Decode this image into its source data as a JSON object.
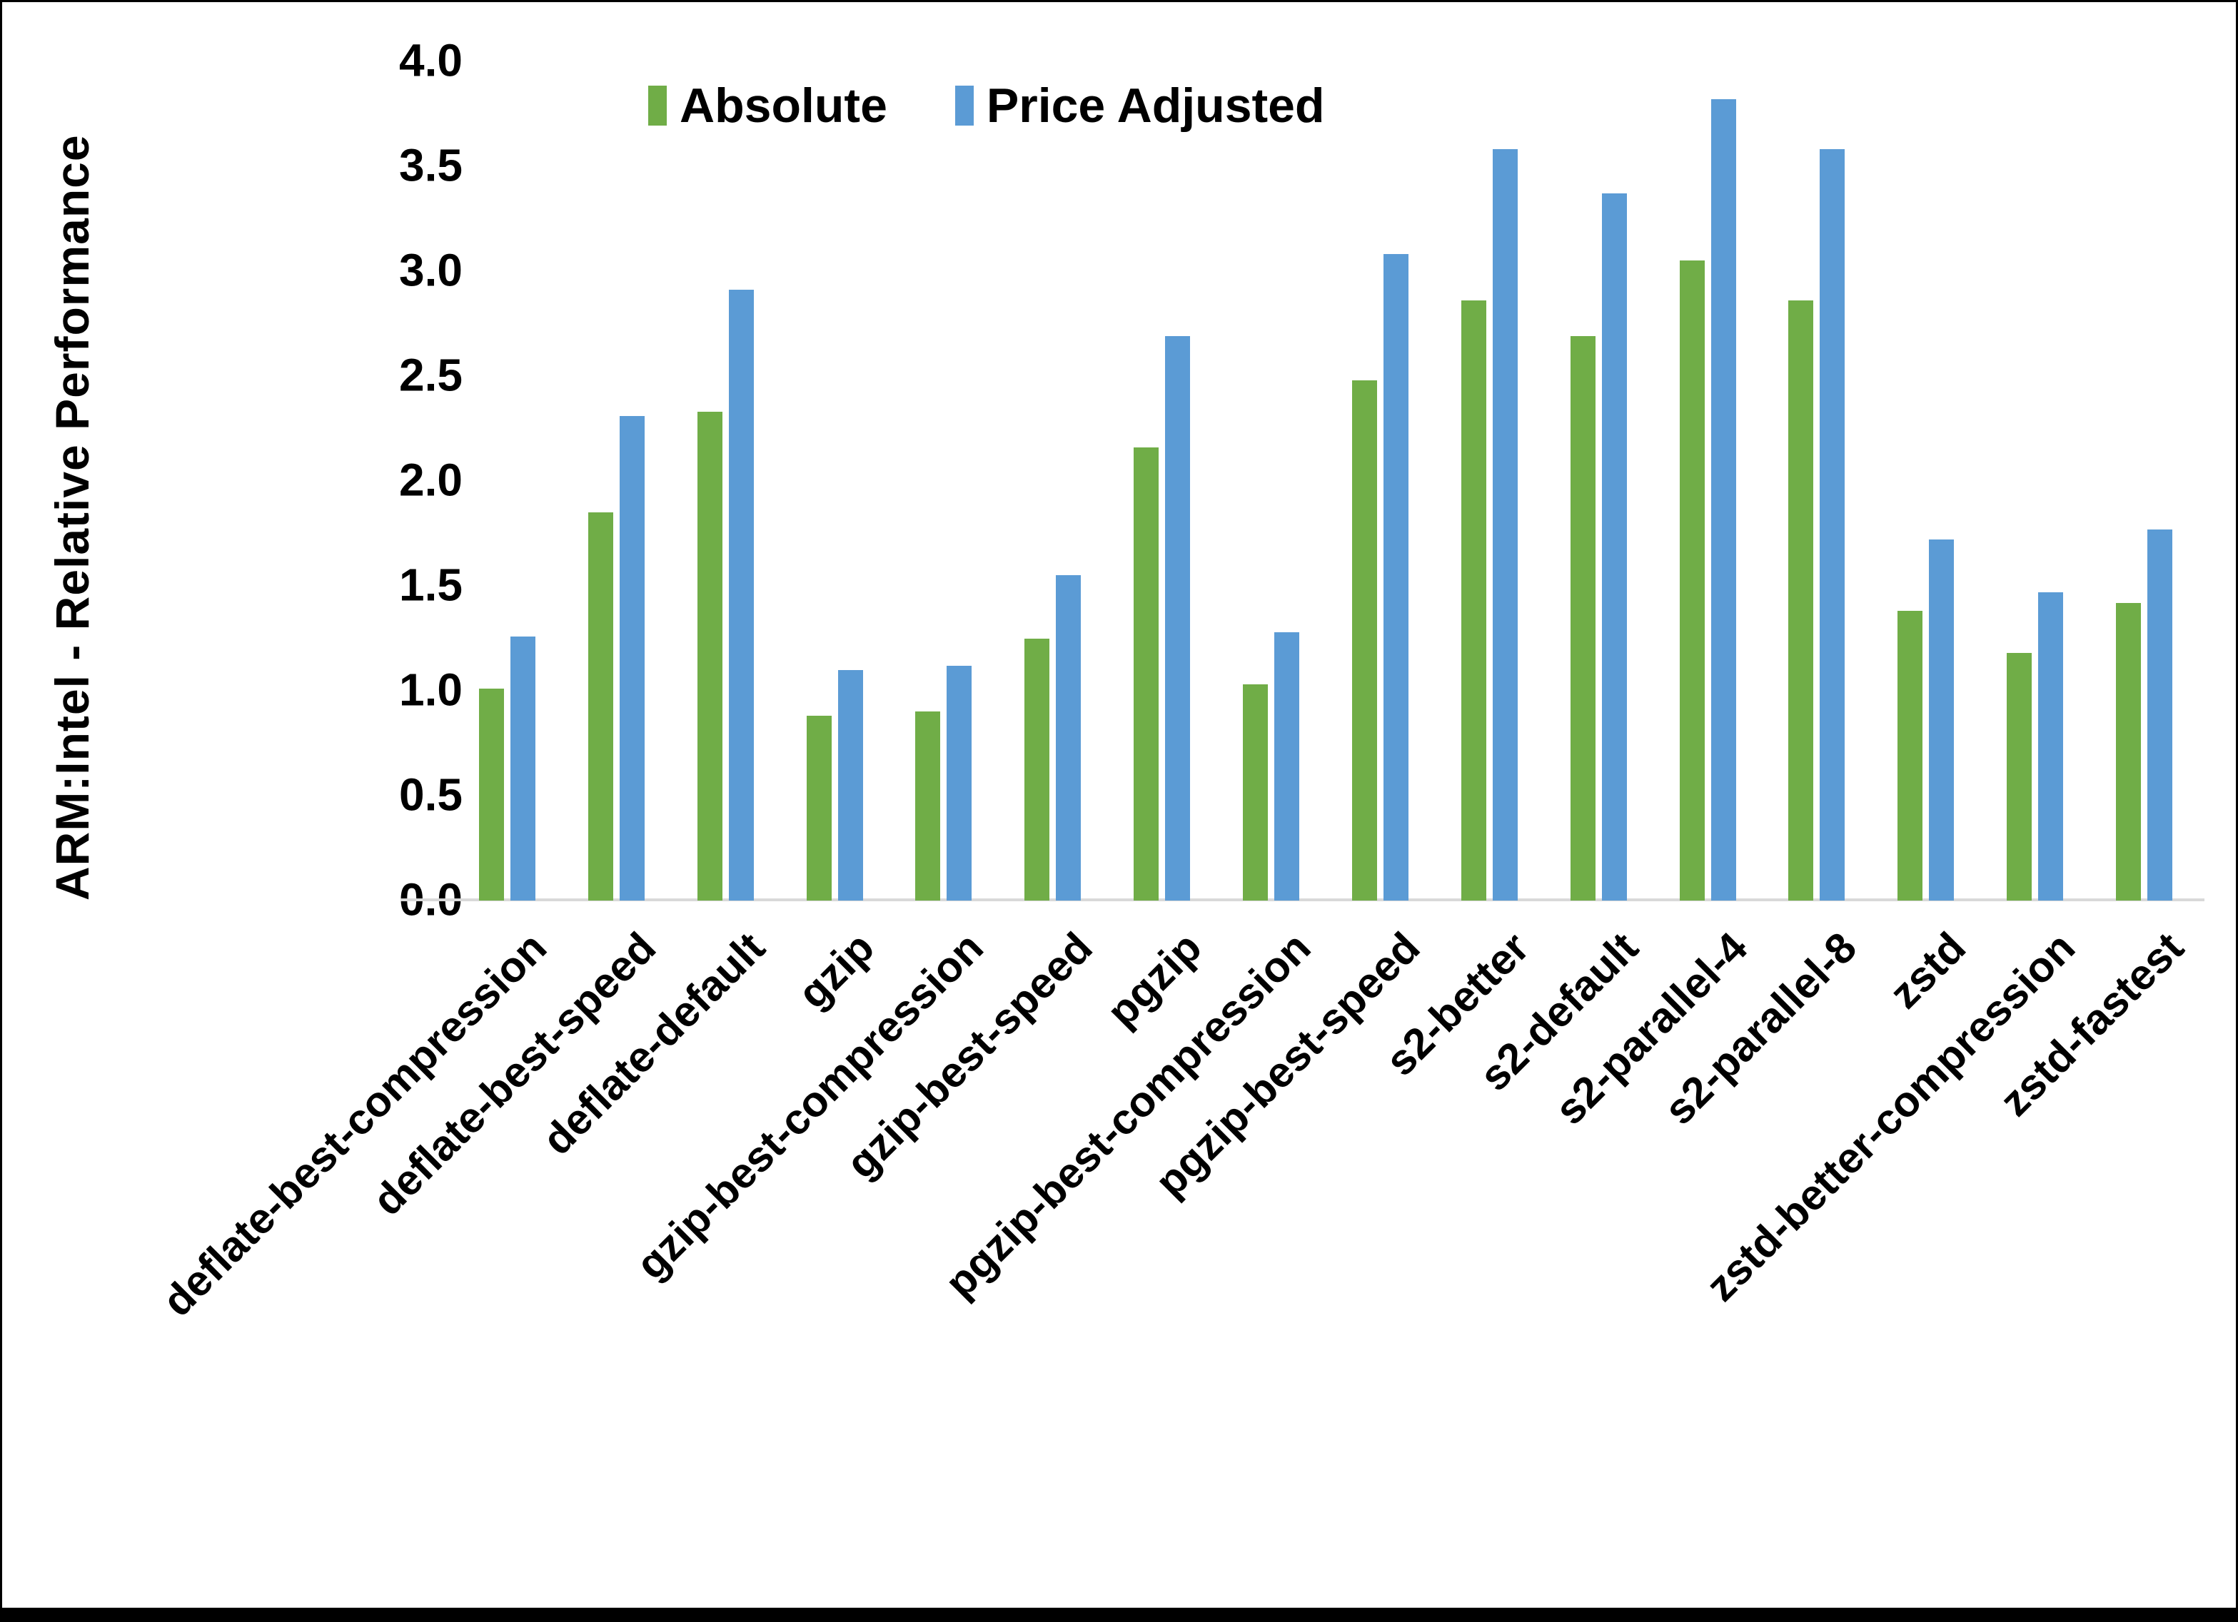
{
  "y_axis": {
    "title": "ARM:Intel - Relative Performance",
    "ticks": [
      "4.0",
      "3.5",
      "3.0",
      "2.5",
      "2.0",
      "1.5",
      "1.0",
      "0.5",
      "0.0"
    ],
    "min": 0.0,
    "max": 4.0
  },
  "chart_data": {
    "type": "bar",
    "title": "",
    "xlabel": "",
    "ylabel": "ARM:Intel - Relative Performance",
    "ylim": [
      0.0,
      4.0
    ],
    "ytick_interval": 0.5,
    "grid": false,
    "legend_position": "top-center",
    "categories": [
      "deflate-best-compression",
      "deflate-best-speed",
      "deflate-default",
      "gzip",
      "gzip-best-compression",
      "gzip-best-speed",
      "pgzip",
      "pgzip-best-compression",
      "pgzip-best-speed",
      "s2-better",
      "s2-default",
      "s2-parallel-4",
      "s2-parallel-8",
      "zstd",
      "zstd-better-compression",
      "zstd-fastest"
    ],
    "series": [
      {
        "name": "Absolute",
        "color": "#70AD47",
        "values": [
          1.01,
          1.85,
          2.33,
          0.88,
          0.9,
          1.25,
          2.16,
          1.03,
          2.48,
          2.86,
          2.69,
          3.05,
          2.86,
          1.38,
          1.18,
          1.42
        ]
      },
      {
        "name": "Price Adjusted",
        "color": "#5B9BD5",
        "values": [
          1.26,
          2.31,
          2.91,
          1.1,
          1.12,
          1.55,
          2.69,
          1.28,
          3.08,
          3.58,
          3.37,
          3.82,
          3.58,
          1.72,
          1.47,
          1.77
        ]
      }
    ]
  },
  "colors": {
    "bar_absolute": "#70AD47",
    "bar_price_adjusted": "#5B9BD5",
    "axis_line": "#D9D9D9",
    "text": "#000000",
    "background": "#FFFFFF",
    "bottom_bar": "#000000"
  }
}
